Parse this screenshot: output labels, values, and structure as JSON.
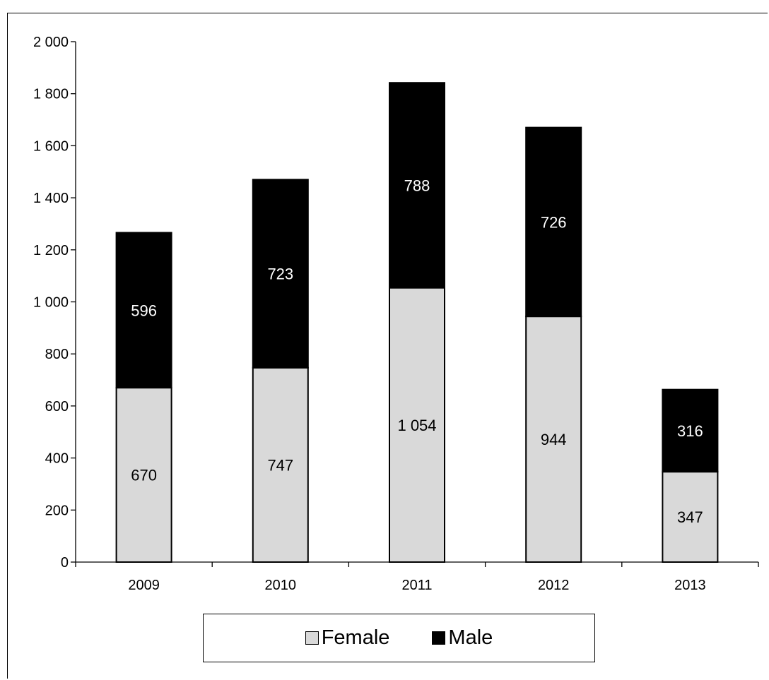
{
  "chart_data": {
    "type": "bar",
    "stacked": true,
    "categories": [
      "2009",
      "2010",
      "2011",
      "2012",
      "2013"
    ],
    "series": [
      {
        "name": "Female",
        "values": [
          670,
          747,
          1054,
          944,
          347
        ],
        "labels": [
          "670",
          "747",
          "1 054",
          "944",
          "347"
        ],
        "color": "#d9d9d9",
        "label_color": "#000000"
      },
      {
        "name": "Male",
        "values": [
          596,
          723,
          788,
          726,
          316
        ],
        "labels": [
          "596",
          "723",
          "788",
          "726",
          "316"
        ],
        "color": "#000000",
        "label_color": "#ffffff"
      }
    ],
    "ylim": [
      0,
      2000
    ],
    "yticks": [
      0,
      200,
      400,
      600,
      800,
      1000,
      1200,
      1400,
      1600,
      1800,
      2000
    ],
    "ytick_labels": [
      "0",
      "200",
      "400",
      "600",
      "800",
      "1 000",
      "1 200",
      "1 400",
      "1 600",
      "1 800",
      "2 000"
    ],
    "grid": false,
    "legend_position": "bottom"
  }
}
